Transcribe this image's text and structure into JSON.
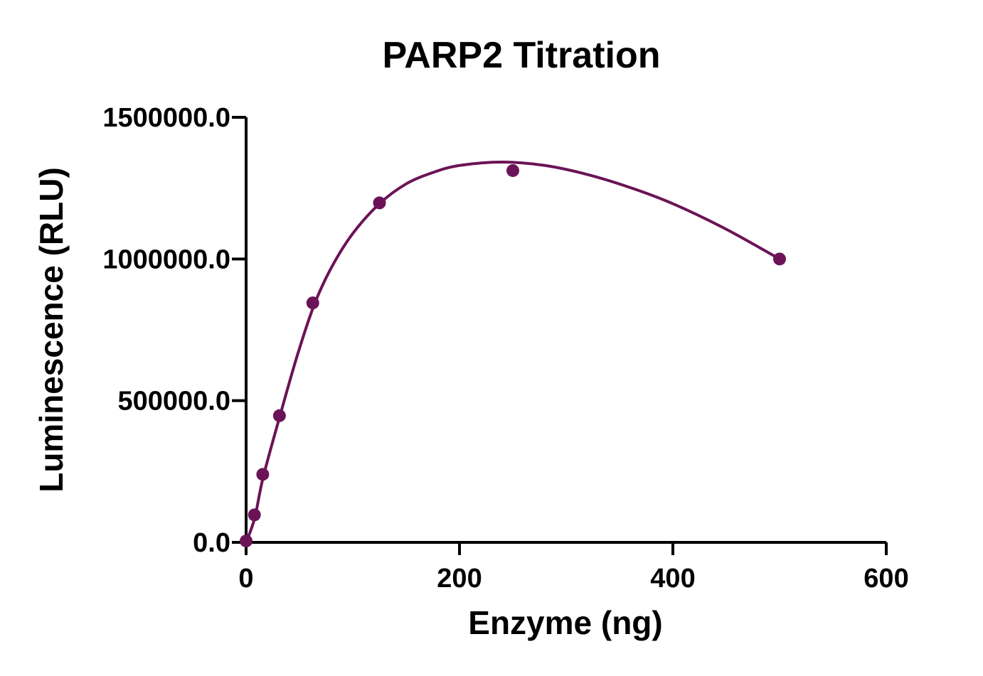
{
  "chart_data": {
    "type": "scatter",
    "title": "PARP2 Titration",
    "xlabel": "Enzyme (ng)",
    "ylabel": "Luminescence (RLU)",
    "xlim": [
      0,
      600
    ],
    "ylim": [
      0,
      1500000
    ],
    "x_ticks": [
      0,
      200,
      400,
      600
    ],
    "x_tick_labels": [
      "0",
      "200",
      "400",
      "600"
    ],
    "y_ticks": [
      0,
      500000,
      1000000,
      1500000
    ],
    "y_tick_labels": [
      "0.0",
      "500000.0",
      "1000000.0",
      "1500000.0"
    ],
    "grid": false,
    "legend": "none",
    "color": "#6b1356",
    "series": [
      {
        "points": [
          {
            "x": 0,
            "y": 5000
          },
          {
            "x": 7.8,
            "y": 97000
          },
          {
            "x": 15.6,
            "y": 240000
          },
          {
            "x": 31.25,
            "y": 447000
          },
          {
            "x": 62.5,
            "y": 845000
          },
          {
            "x": 125,
            "y": 1198000
          },
          {
            "x": 250,
            "y": 1312000
          },
          {
            "x": 500,
            "y": 1000000
          }
        ]
      }
    ],
    "fit_curve": [
      {
        "x": 0,
        "y": 0
      },
      {
        "x": 8,
        "y": 85000
      },
      {
        "x": 16,
        "y": 230000
      },
      {
        "x": 32,
        "y": 450000
      },
      {
        "x": 48,
        "y": 660000
      },
      {
        "x": 64,
        "y": 840000
      },
      {
        "x": 80,
        "y": 970000
      },
      {
        "x": 100,
        "y": 1090000
      },
      {
        "x": 125,
        "y": 1195000
      },
      {
        "x": 150,
        "y": 1265000
      },
      {
        "x": 175,
        "y": 1305000
      },
      {
        "x": 200,
        "y": 1330000
      },
      {
        "x": 240,
        "y": 1342000
      },
      {
        "x": 280,
        "y": 1330000
      },
      {
        "x": 320,
        "y": 1298000
      },
      {
        "x": 360,
        "y": 1252000
      },
      {
        "x": 400,
        "y": 1195000
      },
      {
        "x": 450,
        "y": 1105000
      },
      {
        "x": 500,
        "y": 1000000
      }
    ]
  }
}
